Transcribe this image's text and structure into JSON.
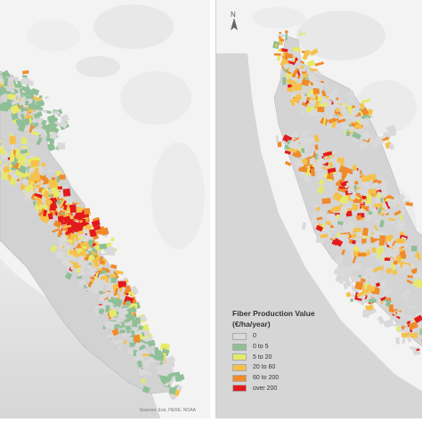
{
  "attribution": "Sources: Esri, HERE, NOAA",
  "north_label": "N",
  "legend": {
    "title_line1": "Fiber Production Value",
    "title_line2": "(€/ha/year)",
    "items": [
      {
        "label": "0",
        "color": "#d9d9d9"
      },
      {
        "label": "0 to 5",
        "color": "#8fbf96"
      },
      {
        "label": "5 to 20",
        "color": "#e6ea6b"
      },
      {
        "label": "20 to 60",
        "color": "#f6c14b"
      },
      {
        "label": "60 to 200",
        "color": "#f08a2a"
      },
      {
        "label": "over 200",
        "color": "#e31a1c"
      }
    ]
  },
  "colors": {
    "terrain_light": "#f4f4f4",
    "terrain_shade": "#d8d8d8",
    "sea": "#dddddd",
    "region_base": "#cfcfcf"
  }
}
